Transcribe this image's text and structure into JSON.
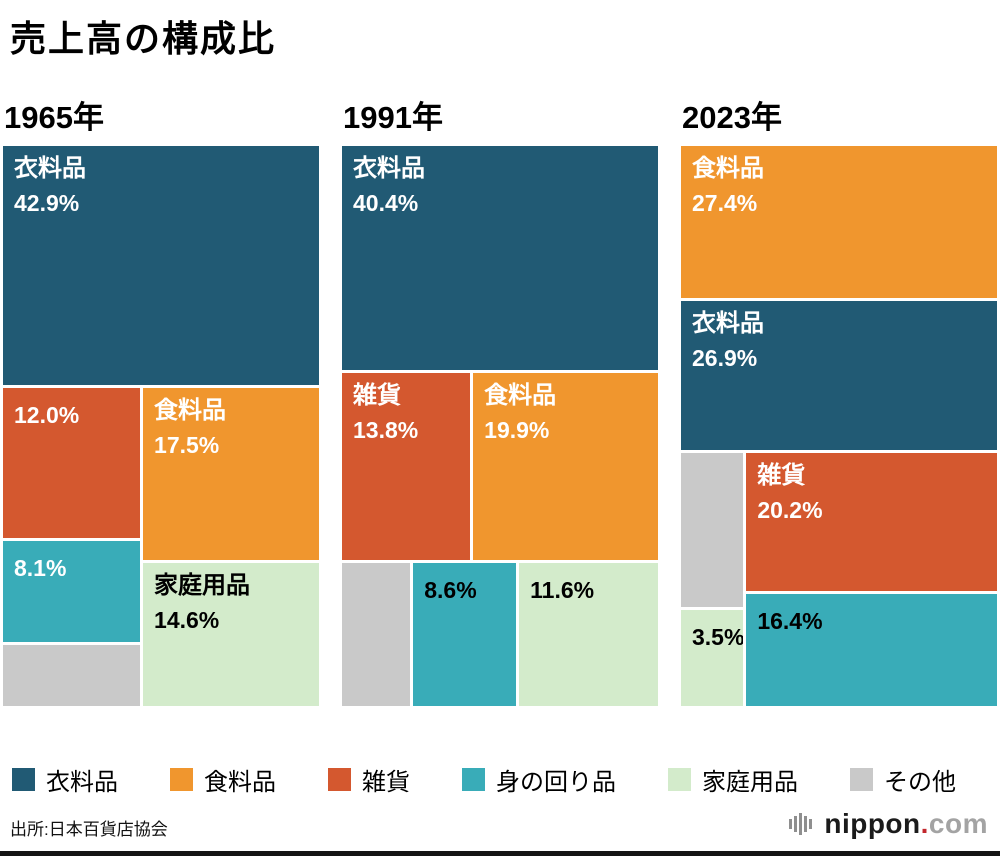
{
  "chart_data": {
    "type": "mosaic",
    "title": "売上高の構成比",
    "source": "出所:日本百貨店協会",
    "unit": "%",
    "legend_position": "bottom",
    "categories": [
      {
        "id": "clothing",
        "label": "衣料品",
        "color": "#215A74",
        "text_color": "#FFFFFF"
      },
      {
        "id": "food",
        "label": "食料品",
        "color": "#F0962E",
        "text_color": "#FFFFFF"
      },
      {
        "id": "sundries",
        "label": "雑貨",
        "color": "#D4582F",
        "text_color": "#FFFFFF"
      },
      {
        "id": "personal",
        "label": "身の回り品",
        "color": "#39ACB8",
        "text_color": "#000000"
      },
      {
        "id": "household",
        "label": "家庭用品",
        "color": "#D3EBCB",
        "text_color": "#000000"
      },
      {
        "id": "other",
        "label": "その他",
        "color": "#C9C9C9",
        "text_color": "#000000"
      }
    ],
    "panels": [
      {
        "id": "1965",
        "year_label": "1965年",
        "values": {
          "clothing": 42.9,
          "sundries": 12.0,
          "food": 17.5,
          "personal": 8.1,
          "household": 14.6,
          "other": 4.9
        },
        "tree": {
          "dir": "col",
          "children": [
            {
              "cat": "clothing",
              "value": 42.9,
              "value_label": "42.9%",
              "show_name": true
            },
            {
              "dir": "row",
              "children": [
                {
                  "dir": "col",
                  "children": [
                    {
                      "cat": "sundries",
                      "value": 12.0,
                      "value_label": "12.0%",
                      "show_name": false
                    },
                    {
                      "cat": "personal",
                      "value": 8.1,
                      "value_label": "8.1%",
                      "show_name": false,
                      "text_color": "#FFFFFF"
                    },
                    {
                      "cat": "other",
                      "value": 4.9,
                      "show_name": false
                    }
                  ]
                },
                {
                  "dir": "col",
                  "children": [
                    {
                      "cat": "food",
                      "value": 17.5,
                      "value_label": "17.5%",
                      "show_name": true
                    },
                    {
                      "cat": "household",
                      "value": 14.6,
                      "value_label": "14.6%",
                      "show_name": true
                    }
                  ]
                }
              ]
            }
          ]
        }
      },
      {
        "id": "1991",
        "year_label": "1991年",
        "values": {
          "clothing": 40.4,
          "sundries": 13.8,
          "food": 19.9,
          "personal": 8.6,
          "household": 11.6,
          "other": 5.7
        },
        "tree": {
          "dir": "col",
          "children": [
            {
              "cat": "clothing",
              "value": 40.4,
              "value_label": "40.4%",
              "show_name": true
            },
            {
              "dir": "row",
              "children": [
                {
                  "cat": "sundries",
                  "value": 13.8,
                  "value_label": "13.8%",
                  "show_name": true
                },
                {
                  "cat": "food",
                  "value": 19.9,
                  "value_label": "19.9%",
                  "show_name": true
                }
              ]
            },
            {
              "dir": "row",
              "children": [
                {
                  "cat": "other",
                  "value": 5.7,
                  "show_name": false
                },
                {
                  "cat": "personal",
                  "value": 8.6,
                  "value_label": "8.6%",
                  "show_name": false
                },
                {
                  "cat": "household",
                  "value": 11.6,
                  "value_label": "11.6%",
                  "show_name": false
                }
              ]
            }
          ]
        }
      },
      {
        "id": "2023",
        "year_label": "2023年",
        "values": {
          "food": 27.4,
          "clothing": 26.9,
          "sundries": 20.2,
          "personal": 16.4,
          "household": 3.5,
          "other": 5.6
        },
        "tree": {
          "dir": "col",
          "children": [
            {
              "cat": "food",
              "value": 27.4,
              "value_label": "27.4%",
              "show_name": true
            },
            {
              "cat": "clothing",
              "value": 26.9,
              "value_label": "26.9%",
              "show_name": true
            },
            {
              "dir": "row",
              "children": [
                {
                  "dir": "col",
                  "children": [
                    {
                      "cat": "other",
                      "value": 5.6,
                      "show_name": false
                    },
                    {
                      "cat": "household",
                      "value": 3.5,
                      "value_label": "3.5%",
                      "show_name": false
                    }
                  ]
                },
                {
                  "dir": "col",
                  "children": [
                    {
                      "cat": "sundries",
                      "value": 20.2,
                      "value_label": "20.2%",
                      "show_name": true
                    },
                    {
                      "cat": "personal",
                      "value": 16.4,
                      "value_label": "16.4%",
                      "show_name": false
                    }
                  ]
                }
              ]
            }
          ]
        }
      }
    ]
  },
  "footer": {
    "logo_main": "nippon",
    "logo_dot": ".",
    "logo_suffix": "com"
  }
}
